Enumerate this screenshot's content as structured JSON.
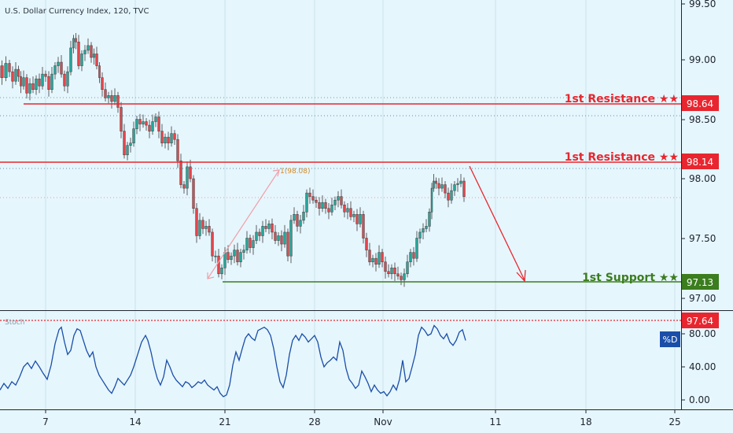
{
  "header": {
    "title": "U.S. Dollar Currency Index, 120, TVC"
  },
  "chart_data": {
    "type": "candlestick",
    "price_axis": {
      "ticks": [
        "99.50",
        "99.00",
        "98.50",
        "98.00",
        "97.50",
        "97.00"
      ],
      "range": [
        96.92,
        99.52
      ]
    },
    "x_axis": {
      "ticks": [
        "7",
        "14",
        "21",
        "28",
        "Nov",
        "11",
        "18",
        "25"
      ]
    },
    "levels": [
      {
        "label": "1st Resistance ★★",
        "value": "98.64",
        "color": "#e8262f"
      },
      {
        "label": "1st Resistance ★★",
        "value": "98.14",
        "color": "#e8262f"
      },
      {
        "label": "1st Support ★★",
        "value": "97.13",
        "color": "#3b7d1f"
      }
    ],
    "fib_label": "1(98.08)",
    "price_path": [
      [
        0,
        98.95
      ],
      [
        5,
        98.85
      ],
      [
        10,
        98.97
      ],
      [
        14,
        98.9
      ],
      [
        18,
        98.82
      ],
      [
        22,
        98.92
      ],
      [
        25,
        98.86
      ],
      [
        28,
        98.78
      ],
      [
        32,
        98.85
      ],
      [
        36,
        98.72
      ],
      [
        40,
        98.8
      ],
      [
        44,
        98.75
      ],
      [
        48,
        98.84
      ],
      [
        52,
        98.78
      ],
      [
        56,
        98.88
      ],
      [
        60,
        98.86
      ],
      [
        64,
        98.75
      ],
      [
        68,
        98.88
      ],
      [
        72,
        98.95
      ],
      [
        76,
        98.98
      ],
      [
        80,
        98.88
      ],
      [
        84,
        98.78
      ],
      [
        88,
        98.9
      ],
      [
        92,
        99.1
      ],
      [
        95,
        99.18
      ],
      [
        98,
        99.15
      ],
      [
        102,
        98.95
      ],
      [
        106,
        99.05
      ],
      [
        110,
        99.08
      ],
      [
        114,
        99.12
      ],
      [
        118,
        99.02
      ],
      [
        121,
        99.05
      ],
      [
        125,
        98.95
      ],
      [
        128,
        98.85
      ],
      [
        132,
        98.75
      ],
      [
        136,
        98.68
      ],
      [
        140,
        98.7
      ],
      [
        144,
        98.65
      ],
      [
        148,
        98.7
      ],
      [
        152,
        98.6
      ],
      [
        156,
        98.4
      ],
      [
        160,
        98.2
      ],
      [
        164,
        98.28
      ],
      [
        168,
        98.3
      ],
      [
        172,
        98.42
      ],
      [
        176,
        98.5
      ],
      [
        180,
        98.46
      ],
      [
        184,
        98.48
      ],
      [
        188,
        98.45
      ],
      [
        192,
        98.4
      ],
      [
        196,
        98.48
      ],
      [
        200,
        98.52
      ],
      [
        204,
        98.4
      ],
      [
        208,
        98.3
      ],
      [
        212,
        98.35
      ],
      [
        216,
        98.3
      ],
      [
        220,
        98.38
      ],
      [
        224,
        98.33
      ],
      [
        228,
        98.15
      ],
      [
        232,
        97.95
      ],
      [
        236,
        97.92
      ],
      [
        240,
        98.1
      ],
      [
        244,
        98.0
      ],
      [
        248,
        97.75
      ],
      [
        252,
        97.52
      ],
      [
        256,
        97.65
      ],
      [
        260,
        97.58
      ],
      [
        264,
        97.6
      ],
      [
        268,
        97.55
      ],
      [
        272,
        97.35
      ],
      [
        276,
        97.35
      ],
      [
        280,
        97.2
      ],
      [
        284,
        97.25
      ],
      [
        288,
        97.38
      ],
      [
        292,
        97.32
      ],
      [
        296,
        97.35
      ],
      [
        300,
        97.4
      ],
      [
        304,
        97.3
      ],
      [
        308,
        97.38
      ],
      [
        312,
        97.4
      ],
      [
        316,
        97.5
      ],
      [
        320,
        97.42
      ],
      [
        324,
        97.48
      ],
      [
        328,
        97.55
      ],
      [
        332,
        97.52
      ],
      [
        336,
        97.6
      ],
      [
        340,
        97.58
      ],
      [
        344,
        97.62
      ],
      [
        348,
        97.55
      ],
      [
        352,
        97.48
      ],
      [
        356,
        97.52
      ],
      [
        360,
        97.45
      ],
      [
        364,
        97.55
      ],
      [
        368,
        97.35
      ],
      [
        372,
        97.65
      ],
      [
        376,
        97.7
      ],
      [
        380,
        97.6
      ],
      [
        384,
        97.65
      ],
      [
        388,
        97.72
      ],
      [
        392,
        97.88
      ],
      [
        396,
        97.85
      ],
      [
        400,
        97.82
      ],
      [
        404,
        97.8
      ],
      [
        408,
        97.75
      ],
      [
        412,
        97.8
      ],
      [
        416,
        97.75
      ],
      [
        420,
        97.72
      ],
      [
        424,
        97.78
      ],
      [
        428,
        97.82
      ],
      [
        432,
        97.85
      ],
      [
        436,
        97.78
      ],
      [
        440,
        97.72
      ],
      [
        444,
        97.75
      ],
      [
        448,
        97.68
      ],
      [
        452,
        97.7
      ],
      [
        456,
        97.62
      ],
      [
        460,
        97.7
      ],
      [
        464,
        97.5
      ],
      [
        468,
        97.4
      ],
      [
        472,
        97.3
      ],
      [
        476,
        97.33
      ],
      [
        480,
        97.28
      ],
      [
        484,
        97.38
      ],
      [
        488,
        97.3
      ],
      [
        492,
        97.22
      ],
      [
        496,
        97.2
      ],
      [
        500,
        97.25
      ],
      [
        504,
        97.2
      ],
      [
        508,
        97.18
      ],
      [
        512,
        97.15
      ],
      [
        516,
        97.2
      ],
      [
        520,
        97.3
      ],
      [
        524,
        97.38
      ],
      [
        528,
        97.33
      ],
      [
        532,
        97.5
      ],
      [
        536,
        97.55
      ],
      [
        540,
        97.58
      ],
      [
        544,
        97.6
      ],
      [
        548,
        97.72
      ],
      [
        550,
        97.92
      ],
      [
        553,
        97.98
      ],
      [
        556,
        97.96
      ],
      [
        560,
        97.92
      ],
      [
        564,
        97.95
      ],
      [
        568,
        97.88
      ],
      [
        572,
        97.82
      ],
      [
        576,
        97.9
      ],
      [
        580,
        97.95
      ],
      [
        584,
        97.96
      ],
      [
        588,
        97.98
      ],
      [
        592,
        97.85
      ]
    ],
    "stoch_panel": {
      "name": "Stoch",
      "current": "97.64",
      "badge": "%D",
      "ticks": [
        "80.00",
        "40.00",
        "0.00"
      ],
      "path": [
        [
          0,
          12
        ],
        [
          5,
          20
        ],
        [
          10,
          14
        ],
        [
          15,
          22
        ],
        [
          20,
          18
        ],
        [
          25,
          28
        ],
        [
          30,
          40
        ],
        [
          35,
          45
        ],
        [
          40,
          38
        ],
        [
          45,
          47
        ],
        [
          50,
          40
        ],
        [
          55,
          32
        ],
        [
          60,
          25
        ],
        [
          65,
          42
        ],
        [
          70,
          68
        ],
        [
          75,
          85
        ],
        [
          78,
          88
        ],
        [
          82,
          70
        ],
        [
          86,
          55
        ],
        [
          90,
          60
        ],
        [
          94,
          78
        ],
        [
          98,
          86
        ],
        [
          102,
          84
        ],
        [
          106,
          72
        ],
        [
          110,
          60
        ],
        [
          114,
          52
        ],
        [
          118,
          58
        ],
        [
          122,
          40
        ],
        [
          126,
          30
        ],
        [
          130,
          24
        ],
        [
          134,
          18
        ],
        [
          138,
          12
        ],
        [
          142,
          8
        ],
        [
          146,
          16
        ],
        [
          150,
          26
        ],
        [
          154,
          22
        ],
        [
          158,
          18
        ],
        [
          162,
          24
        ],
        [
          166,
          30
        ],
        [
          170,
          40
        ],
        [
          175,
          55
        ],
        [
          180,
          70
        ],
        [
          185,
          78
        ],
        [
          188,
          72
        ],
        [
          192,
          58
        ],
        [
          196,
          40
        ],
        [
          200,
          26
        ],
        [
          204,
          18
        ],
        [
          208,
          28
        ],
        [
          212,
          48
        ],
        [
          216,
          40
        ],
        [
          220,
          30
        ],
        [
          224,
          24
        ],
        [
          228,
          20
        ],
        [
          232,
          16
        ],
        [
          236,
          22
        ],
        [
          240,
          20
        ],
        [
          244,
          15
        ],
        [
          248,
          18
        ],
        [
          252,
          22
        ],
        [
          256,
          20
        ],
        [
          260,
          24
        ],
        [
          264,
          18
        ],
        [
          268,
          15
        ],
        [
          272,
          12
        ],
        [
          276,
          16
        ],
        [
          280,
          8
        ],
        [
          284,
          4
        ],
        [
          288,
          6
        ],
        [
          292,
          18
        ],
        [
          296,
          42
        ],
        [
          300,
          58
        ],
        [
          304,
          48
        ],
        [
          308,
          62
        ],
        [
          312,
          75
        ],
        [
          316,
          80
        ],
        [
          320,
          75
        ],
        [
          324,
          72
        ],
        [
          328,
          84
        ],
        [
          332,
          86
        ],
        [
          336,
          88
        ],
        [
          340,
          85
        ],
        [
          344,
          78
        ],
        [
          348,
          62
        ],
        [
          352,
          40
        ],
        [
          356,
          22
        ],
        [
          360,
          15
        ],
        [
          364,
          30
        ],
        [
          368,
          55
        ],
        [
          372,
          72
        ],
        [
          376,
          78
        ],
        [
          380,
          72
        ],
        [
          384,
          80
        ],
        [
          388,
          76
        ],
        [
          392,
          70
        ],
        [
          396,
          74
        ],
        [
          400,
          78
        ],
        [
          404,
          70
        ],
        [
          408,
          52
        ],
        [
          412,
          40
        ],
        [
          416,
          45
        ],
        [
          420,
          48
        ],
        [
          424,
          52
        ],
        [
          428,
          48
        ],
        [
          432,
          70
        ],
        [
          436,
          60
        ],
        [
          440,
          38
        ],
        [
          444,
          25
        ],
        [
          448,
          20
        ],
        [
          452,
          14
        ],
        [
          456,
          18
        ],
        [
          460,
          35
        ],
        [
          464,
          28
        ],
        [
          468,
          20
        ],
        [
          472,
          10
        ],
        [
          476,
          18
        ],
        [
          480,
          12
        ],
        [
          484,
          8
        ],
        [
          488,
          10
        ],
        [
          492,
          5
        ],
        [
          496,
          10
        ],
        [
          500,
          18
        ],
        [
          504,
          12
        ],
        [
          508,
          25
        ],
        [
          512,
          48
        ],
        [
          516,
          22
        ],
        [
          520,
          26
        ],
        [
          524,
          40
        ],
        [
          528,
          55
        ],
        [
          532,
          78
        ],
        [
          536,
          88
        ],
        [
          540,
          84
        ],
        [
          544,
          78
        ],
        [
          548,
          80
        ],
        [
          552,
          90
        ],
        [
          556,
          86
        ],
        [
          560,
          78
        ],
        [
          564,
          74
        ],
        [
          568,
          80
        ],
        [
          572,
          70
        ],
        [
          576,
          66
        ],
        [
          580,
          72
        ],
        [
          584,
          82
        ],
        [
          588,
          85
        ],
        [
          592,
          72
        ]
      ]
    },
    "colors": {
      "up": "#26a69a",
      "down": "#e0464c",
      "line": "#1a4ea8",
      "axis": "#202530"
    }
  }
}
